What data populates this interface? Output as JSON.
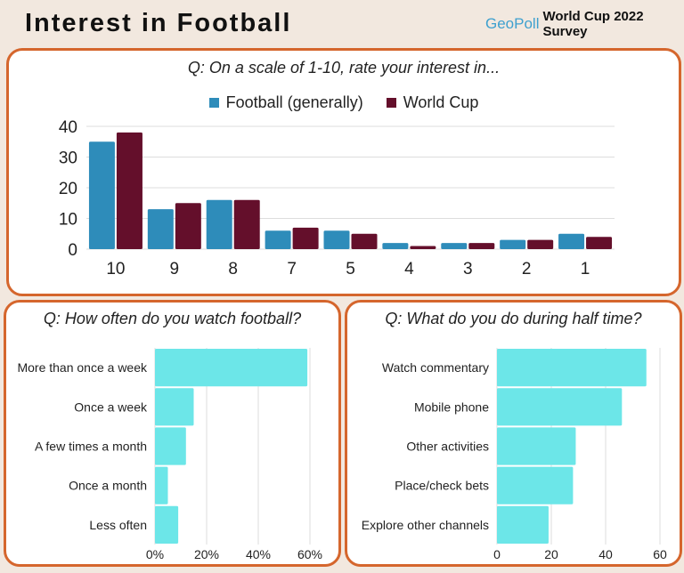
{
  "header": {
    "title": "Interest in Football",
    "logo": "GeoPoll",
    "survey": "World Cup 2022 Survey"
  },
  "chart_data": [
    {
      "type": "bar",
      "title": "Q: On a scale of 1-10, rate your interest in...",
      "categories": [
        "10",
        "9",
        "8",
        "7",
        "5",
        "4",
        "3",
        "2",
        "1"
      ],
      "series": [
        {
          "name": "Football (generally)",
          "color": "#2e8cba",
          "values": [
            35,
            13,
            16,
            6,
            6,
            2,
            2,
            3,
            5
          ]
        },
        {
          "name": "World Cup",
          "color": "#640f2b",
          "values": [
            38,
            15,
            16,
            7,
            5,
            1,
            2,
            3,
            4
          ]
        }
      ],
      "yticks": [
        "0",
        "10",
        "20",
        "30",
        "40"
      ],
      "ylim": [
        0,
        40
      ],
      "grid": true,
      "legend": "top"
    },
    {
      "type": "bar",
      "orientation": "horizontal",
      "title": "Q: How often do you watch football?",
      "color": "#6ce6e8",
      "categories": [
        "More than once a week",
        "Once a week",
        "A few times a month",
        "Once a month",
        "Less often"
      ],
      "values": [
        59,
        15,
        12,
        5,
        9
      ],
      "xticks": [
        "0%",
        "20%",
        "40%",
        "60%"
      ],
      "xlim": [
        0,
        60
      ],
      "grid": true
    },
    {
      "type": "bar",
      "orientation": "horizontal",
      "title": "Q: What do you do during half time?",
      "color": "#6ce6e8",
      "categories": [
        "Watch commentary",
        "Mobile phone",
        "Other activities",
        "Place/check bets",
        "Explore other channels"
      ],
      "values": [
        55,
        46,
        29,
        28,
        19
      ],
      "xticks": [
        "0",
        "20",
        "40",
        "60"
      ],
      "xlim": [
        0,
        60
      ],
      "grid": true
    }
  ]
}
